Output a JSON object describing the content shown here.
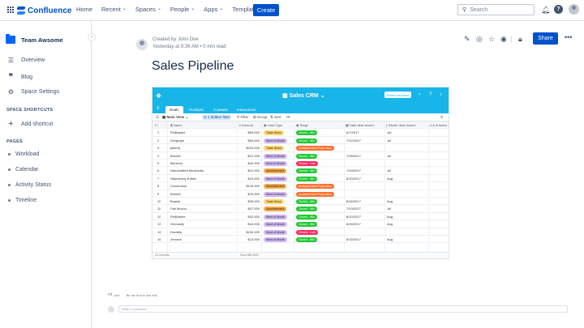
{
  "topbar": {
    "app_name": "Confluence",
    "nav": [
      "Home",
      "Recent",
      "Spaces",
      "People",
      "Apps",
      "Templates"
    ],
    "create_label": "Create",
    "search_placeholder": "Search"
  },
  "sidebar": {
    "space_name": "Team Awsome",
    "links": [
      {
        "label": "Overview",
        "icon": "overview-icon"
      },
      {
        "label": "Blog",
        "icon": "quote-icon"
      },
      {
        "label": "Space Settings",
        "icon": "gear-icon"
      }
    ],
    "shortcuts_heading": "SPACE SHORTCUTS",
    "add_shortcut_label": "Add shortcut",
    "pages_heading": "PAGES",
    "pages": [
      "Workload",
      "Calendar",
      "Activity Status",
      "Timeline"
    ]
  },
  "page": {
    "created_by": "Created by John Doe",
    "timestamp": "Yesterday at 9:39 AM  •  0 min read",
    "title": "Sales Pipeline",
    "share_label": "Share"
  },
  "embed": {
    "base_name": "Sales CRM",
    "share_label": "Share this base",
    "tabs": [
      "Deals",
      "Products",
      "Contacts",
      "Interactions"
    ],
    "toolbar": {
      "view_name": "Main View",
      "hidden_fields": "1 hidden field",
      "filter": "Filter",
      "group": "Group",
      "sort": "Sort"
    },
    "columns": [
      "Name",
      "Amount",
      "Lead Type",
      "Stage",
      "Date deal closed",
      "Month deal closed",
      "# of licens"
    ],
    "rows": [
      {
        "n": "1",
        "name": "PinBasket",
        "amount": "$69,000",
        "lead": "Trade Show",
        "stage": "Closed - Win",
        "date": "6/7/2017",
        "month": "Jun"
      },
      {
        "n": "2",
        "name": "Zengrape",
        "amount": "$60,000",
        "lead": "Word of Mouth",
        "stage": "Closed - Win",
        "date": "7/12/2017",
        "month": "Jul"
      },
      {
        "n": "3",
        "name": "jasonly",
        "amount": "$229,000",
        "lead": "Trade Show",
        "stage": "Analysis/Value Proposition",
        "date": "",
        "month": ""
      },
      {
        "n": "4",
        "name": "Brmble",
        "amount": "$12,000",
        "lead": "Word of Mouth",
        "stage": "Closed - Win",
        "date": "7/28/2017",
        "month": "Jul"
      },
      {
        "n": "5",
        "name": "Biznexio",
        "amount": "$42,000",
        "lead": "Word of Mouth",
        "stage": "Closed - Lost",
        "date": "",
        "month": ""
      },
      {
        "n": "6",
        "name": "Handcrafted Mediocrity",
        "amount": "$12,000",
        "lead": "Advertisement",
        "stage": "Closed - Win",
        "date": "7/19/2017",
        "month": "Jul"
      },
      {
        "n": "7",
        "name": "Objectively Edible",
        "amount": "$19,000",
        "lead": "Word of Mouth",
        "stage": "Closed - Win",
        "date": "8/10/2017",
        "month": "Aug"
      },
      {
        "n": "8",
        "name": "Consensus",
        "amount": "$100,000",
        "lead": "Advertisement",
        "stage": "Analysis/Value Proposition",
        "date": "",
        "month": ""
      },
      {
        "n": "9",
        "name": "Brmble",
        "amount": "$76,000",
        "lead": "Word of Mouth",
        "stage": "Analysis/Value Proposition",
        "date": "",
        "month": ""
      },
      {
        "n": "10",
        "name": "Bopistr",
        "amount": "$39,000",
        "lead": "Trade Show",
        "stage": "Closed - Win",
        "date": "8/16/2017",
        "month": "Aug"
      },
      {
        "n": "11",
        "name": "Fab Mocca",
        "amount": "$47,000",
        "lead": "Advertisement",
        "stage": "Closed - Win",
        "date": "7/10/2017",
        "month": "Jul"
      },
      {
        "n": "12",
        "name": "PinBasket",
        "amount": "$32,000",
        "lead": "Word of Mouth",
        "stage": "Closed - Win",
        "date": "8/10/2017",
        "month": "Aug"
      },
      {
        "n": "13",
        "name": "Omnosity",
        "amount": "$15,000",
        "lead": "Word of Mouth",
        "stage": "Closed - Win",
        "date": "8/24/2017",
        "month": "Aug"
      },
      {
        "n": "14",
        "name": "Duvidity",
        "amount": "$190,000",
        "lead": "Word of Mouth",
        "stage": "Closed - Lost",
        "date": "",
        "month": ""
      },
      {
        "n": "15",
        "name": "Zenoral",
        "amount": "$13,000",
        "lead": "Word of Mouth",
        "stage": "Closed - Win",
        "date": "8/15/2017",
        "month": "Aug"
      }
    ],
    "footer_records": "21 records",
    "footer_sum": "Sum $82,800",
    "lead_colors": {
      "Trade Show": "#ffd66e",
      "Word of Mouth": "#d0b8f5",
      "Advertisement": "#f7a845"
    },
    "stage_colors": {
      "Closed - Win": "#20c933",
      "Closed - Lost": "#f82b60",
      "Analysis/Value Proposition": "#ff6f2c"
    }
  },
  "bottom": {
    "like_label": "Like",
    "like_hint": "Be the first to like this",
    "comment_placeholder": "Write a comment..."
  }
}
